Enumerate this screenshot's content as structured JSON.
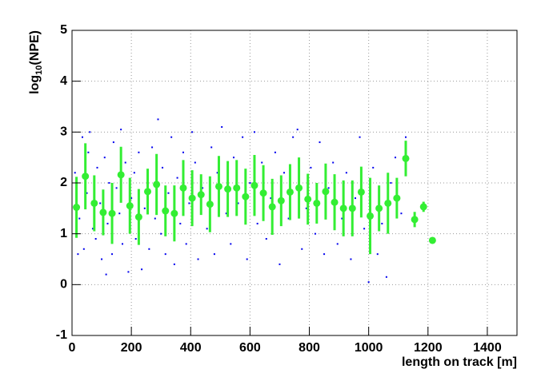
{
  "chart_data": {
    "type": "scatter",
    "xlabel": "length on track [m]",
    "ylabel": [
      "log",
      "10",
      "(NPE)"
    ],
    "xlim": [
      0,
      1500
    ],
    "ylim": [
      -1,
      5
    ],
    "xticks": [
      0,
      200,
      400,
      600,
      800,
      1000,
      1200,
      1400
    ],
    "yticks": [
      -1,
      0,
      1,
      2,
      3,
      4,
      5
    ],
    "grid": true,
    "series": [
      {
        "type": "scatter",
        "color": "#0000ee",
        "x": [
          10,
          20,
          25,
          35,
          40,
          50,
          55,
          60,
          70,
          80,
          85,
          95,
          100,
          110,
          115,
          120,
          125,
          135,
          140,
          150,
          160,
          165,
          170,
          180,
          190,
          200,
          210,
          215,
          225,
          235,
          245,
          255,
          260,
          270,
          280,
          290,
          300,
          305,
          315,
          325,
          335,
          345,
          355,
          365,
          375,
          385,
          395,
          405,
          415,
          425,
          440,
          455,
          470,
          480,
          490,
          505,
          520,
          535,
          545,
          560,
          575,
          590,
          600,
          615,
          625,
          640,
          655,
          670,
          685,
          700,
          715,
          730,
          745,
          760,
          775,
          790,
          805,
          820,
          835,
          850,
          865,
          880,
          895,
          910,
          925,
          940,
          955,
          970,
          985,
          1000,
          1015,
          1030,
          1045,
          1060,
          1075,
          1090,
          1110,
          1125
        ],
        "values": [
          2.2,
          0.6,
          1.3,
          2.9,
          0.7,
          1.8,
          2.6,
          3.0,
          1.1,
          0.9,
          2.3,
          1.6,
          0.5,
          2.5,
          0.2,
          1.2,
          2.0,
          0.6,
          2.8,
          1.9,
          1.4,
          3.05,
          0.8,
          2.4,
          0.25,
          1.7,
          2.2,
          0.9,
          2.6,
          0.3,
          1.5,
          2.0,
          0.7,
          2.7,
          1.3,
          3.25,
          1.0,
          2.3,
          0.6,
          1.8,
          2.9,
          0.4,
          2.1,
          1.2,
          2.6,
          0.8,
          1.6,
          3.0,
          2.4,
          0.5,
          1.9,
          1.1,
          2.7,
          0.6,
          2.2,
          3.1,
          1.4,
          0.8,
          2.5,
          1.6,
          2.9,
          0.5,
          2.0,
          3.0,
          1.2,
          2.4,
          0.9,
          1.7,
          2.6,
          0.4,
          2.2,
          1.3,
          2.9,
          3.05,
          0.7,
          1.5,
          2.3,
          1.0,
          2.8,
          0.6,
          1.9,
          2.4,
          0.8,
          1.3,
          2.2,
          0.5,
          1.7,
          2.9,
          1.1,
          0.05,
          2.3,
          0.6,
          1.2,
          0.15,
          2.0,
          2.5,
          1.4,
          2.9
        ]
      },
      {
        "type": "errorbar",
        "color": "#33ee33",
        "x": [
          15,
          45,
          75,
          105,
          135,
          165,
          195,
          225,
          255,
          285,
          315,
          345,
          375,
          405,
          435,
          465,
          495,
          525,
          555,
          585,
          615,
          645,
          675,
          705,
          735,
          765,
          795,
          825,
          855,
          885,
          915,
          945,
          975,
          1005,
          1035,
          1065,
          1095,
          1125,
          1155,
          1185,
          1215
        ],
        "values": [
          1.52,
          2.13,
          1.6,
          1.42,
          1.4,
          2.16,
          1.55,
          1.33,
          1.83,
          1.97,
          1.45,
          1.4,
          1.9,
          1.7,
          1.77,
          1.58,
          1.93,
          1.88,
          1.9,
          1.73,
          1.95,
          1.8,
          1.53,
          1.65,
          1.82,
          1.9,
          1.68,
          1.6,
          1.83,
          1.62,
          1.5,
          1.5,
          1.82,
          1.35,
          1.5,
          1.6,
          1.7,
          2.48,
          1.28,
          1.53,
          0.87
        ],
        "errors": [
          0.6,
          0.65,
          0.55,
          0.45,
          0.6,
          0.55,
          0.55,
          0.55,
          0.45,
          0.6,
          0.5,
          0.55,
          0.55,
          0.55,
          0.4,
          0.55,
          0.6,
          0.55,
          0.55,
          0.55,
          0.6,
          0.55,
          0.55,
          0.5,
          0.55,
          0.6,
          0.5,
          0.4,
          0.55,
          0.55,
          0.55,
          0.55,
          0.5,
          0.75,
          0.45,
          0.6,
          0.4,
          0.35,
          0.15,
          0.1,
          0
        ]
      }
    ]
  }
}
